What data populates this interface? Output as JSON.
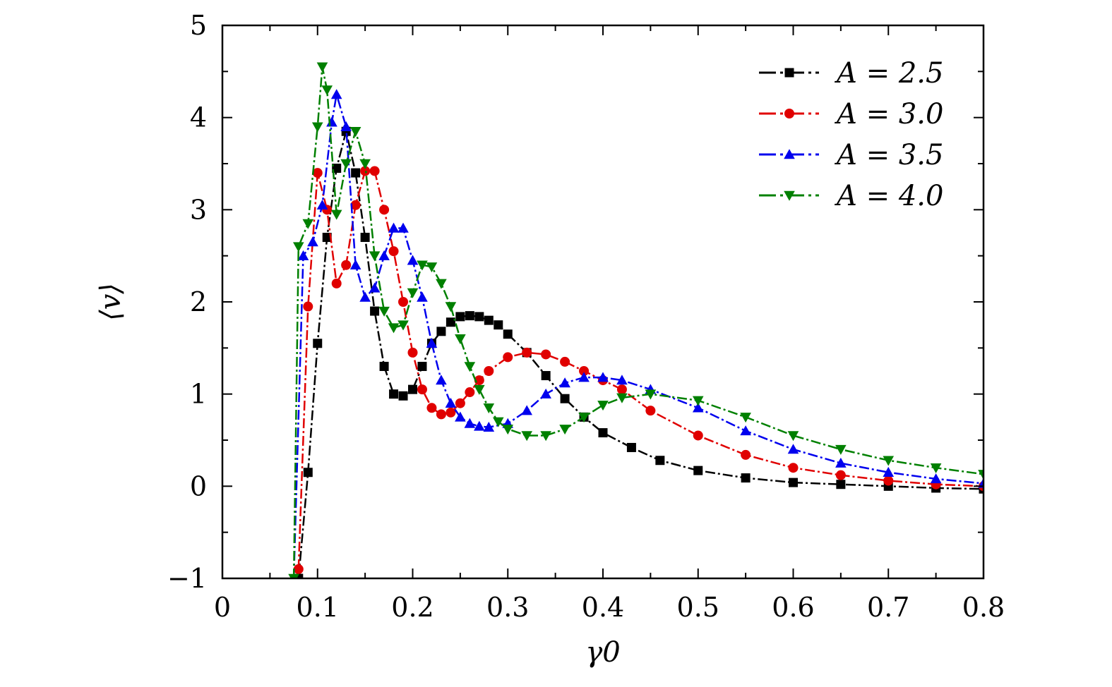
{
  "chart_data": {
    "type": "line",
    "xlabel": "γ0",
    "ylabel": "⟨v⟩",
    "xlim": [
      0,
      0.8
    ],
    "ylim": [
      -1,
      5
    ],
    "xticks": [
      0,
      0.1,
      0.2,
      0.3,
      0.4,
      0.5,
      0.6,
      0.7,
      0.8
    ],
    "xtick_labels": [
      "0",
      "0.1",
      "0.2",
      "0.3",
      "0.4",
      "0.5",
      "0.6",
      "0.7",
      "0.8"
    ],
    "yticks": [
      -1,
      0,
      1,
      2,
      3,
      4,
      5
    ],
    "ytick_labels": [
      "−1",
      "0",
      "1",
      "2",
      "3",
      "4",
      "5"
    ],
    "grid": false,
    "legend_position": "top-right",
    "series": [
      {
        "name": "A = 2.5",
        "color": "#000000",
        "marker": "square",
        "x": [
          0.08,
          0.09,
          0.1,
          0.11,
          0.12,
          0.13,
          0.14,
          0.15,
          0.16,
          0.17,
          0.18,
          0.19,
          0.2,
          0.21,
          0.22,
          0.23,
          0.24,
          0.25,
          0.26,
          0.27,
          0.28,
          0.29,
          0.3,
          0.32,
          0.34,
          0.36,
          0.38,
          0.4,
          0.43,
          0.46,
          0.5,
          0.55,
          0.6,
          0.65,
          0.7,
          0.75,
          0.8
        ],
        "y": [
          -1.0,
          0.15,
          1.55,
          2.7,
          3.45,
          3.85,
          3.4,
          2.7,
          1.9,
          1.3,
          1.0,
          0.98,
          1.05,
          1.3,
          1.55,
          1.68,
          1.78,
          1.84,
          1.85,
          1.84,
          1.8,
          1.75,
          1.65,
          1.45,
          1.2,
          0.95,
          0.75,
          0.58,
          0.42,
          0.28,
          0.17,
          0.09,
          0.04,
          0.02,
          0.0,
          -0.02,
          -0.03
        ]
      },
      {
        "name": "A = 3.0",
        "color": "#e00000",
        "marker": "circle",
        "x": [
          0.08,
          0.09,
          0.1,
          0.11,
          0.12,
          0.13,
          0.14,
          0.15,
          0.16,
          0.17,
          0.18,
          0.19,
          0.2,
          0.21,
          0.22,
          0.23,
          0.24,
          0.25,
          0.26,
          0.27,
          0.28,
          0.3,
          0.32,
          0.34,
          0.36,
          0.38,
          0.4,
          0.42,
          0.45,
          0.5,
          0.55,
          0.6,
          0.65,
          0.7,
          0.75,
          0.8
        ],
        "y": [
          -0.9,
          1.95,
          3.4,
          3.0,
          2.2,
          2.4,
          3.05,
          3.42,
          3.42,
          3.0,
          2.55,
          2.0,
          1.45,
          1.05,
          0.85,
          0.78,
          0.8,
          0.9,
          1.02,
          1.15,
          1.25,
          1.4,
          1.45,
          1.43,
          1.35,
          1.25,
          1.15,
          1.05,
          0.82,
          0.55,
          0.34,
          0.2,
          0.12,
          0.06,
          0.02,
          0.0
        ]
      },
      {
        "name": "A = 3.5",
        "color": "#0000ee",
        "marker": "triangle-up",
        "x": [
          0.075,
          0.085,
          0.095,
          0.105,
          0.115,
          0.12,
          0.13,
          0.14,
          0.15,
          0.16,
          0.17,
          0.18,
          0.19,
          0.2,
          0.21,
          0.22,
          0.23,
          0.24,
          0.25,
          0.26,
          0.27,
          0.28,
          0.3,
          0.32,
          0.34,
          0.36,
          0.38,
          0.4,
          0.42,
          0.45,
          0.5,
          0.55,
          0.6,
          0.65,
          0.7,
          0.75,
          0.8
        ],
        "y": [
          -1.0,
          2.5,
          2.65,
          3.05,
          3.95,
          4.25,
          3.9,
          2.4,
          2.05,
          2.15,
          2.5,
          2.8,
          2.8,
          2.45,
          2.05,
          1.55,
          1.15,
          0.9,
          0.75,
          0.68,
          0.65,
          0.64,
          0.68,
          0.82,
          1.0,
          1.12,
          1.18,
          1.18,
          1.15,
          1.05,
          0.85,
          0.6,
          0.4,
          0.25,
          0.15,
          0.08,
          0.03
        ]
      },
      {
        "name": "A = 4.0",
        "color": "#008000",
        "marker": "triangle-down",
        "x": [
          0.075,
          0.08,
          0.09,
          0.1,
          0.105,
          0.11,
          0.12,
          0.13,
          0.14,
          0.15,
          0.16,
          0.17,
          0.18,
          0.19,
          0.2,
          0.21,
          0.22,
          0.23,
          0.24,
          0.25,
          0.26,
          0.27,
          0.28,
          0.29,
          0.3,
          0.32,
          0.34,
          0.36,
          0.38,
          0.4,
          0.42,
          0.45,
          0.5,
          0.55,
          0.6,
          0.65,
          0.7,
          0.75,
          0.8
        ],
        "y": [
          -1.0,
          2.6,
          2.85,
          3.9,
          4.55,
          4.3,
          2.95,
          3.5,
          3.85,
          3.5,
          2.5,
          1.9,
          1.72,
          1.75,
          2.1,
          2.4,
          2.38,
          2.2,
          1.95,
          1.6,
          1.3,
          1.05,
          0.85,
          0.7,
          0.62,
          0.55,
          0.55,
          0.62,
          0.75,
          0.88,
          0.96,
          1.0,
          0.93,
          0.75,
          0.55,
          0.4,
          0.28,
          0.2,
          0.13
        ]
      }
    ]
  }
}
